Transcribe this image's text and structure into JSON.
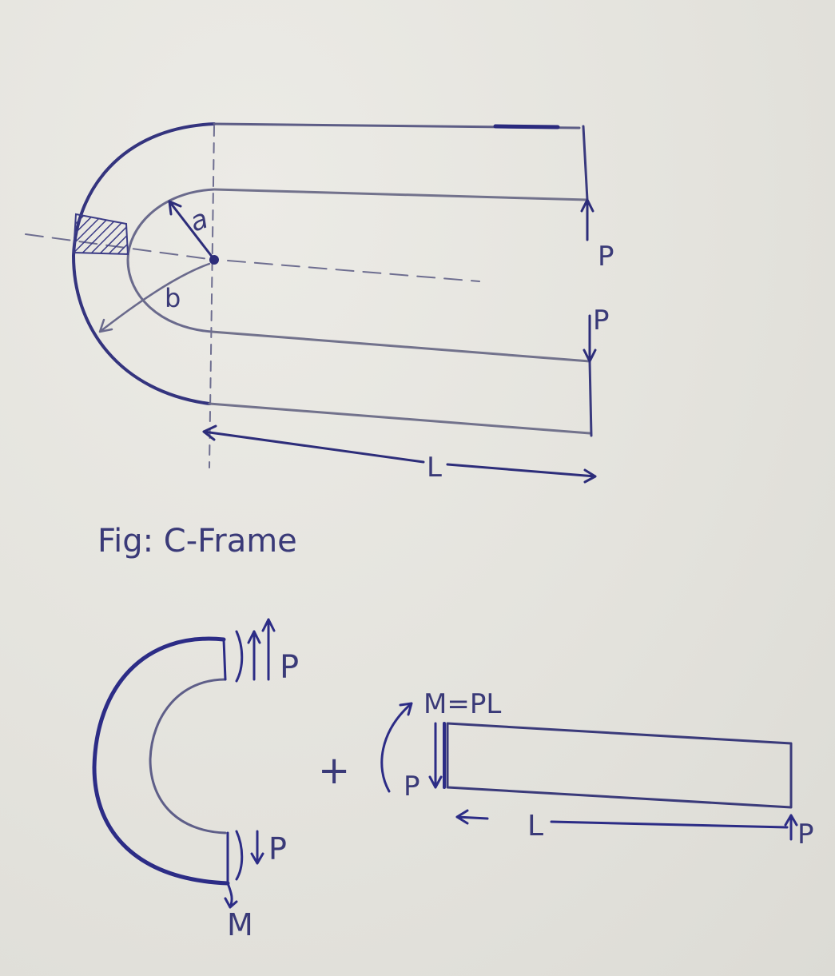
{
  "diagram": {
    "caption": "Fig: C-Frame",
    "labels": {
      "inner_radius": "a",
      "outer_radius": "b",
      "load_top": "P",
      "load_bottom": "P",
      "length": "L",
      "moment": "M=PL",
      "force_p_small": "P",
      "force_p_right": "P",
      "length_free_body": "L",
      "moment_curved_bottom": "M",
      "top_curved_load": "P",
      "bottom_curved_load": "P",
      "plus_sign": "+"
    },
    "colors": {
      "ink_dark": "#2f2f7a",
      "ink_light": "#6e6e90",
      "paper": "#e6e5e0",
      "hatch": "#3b3b86"
    }
  }
}
